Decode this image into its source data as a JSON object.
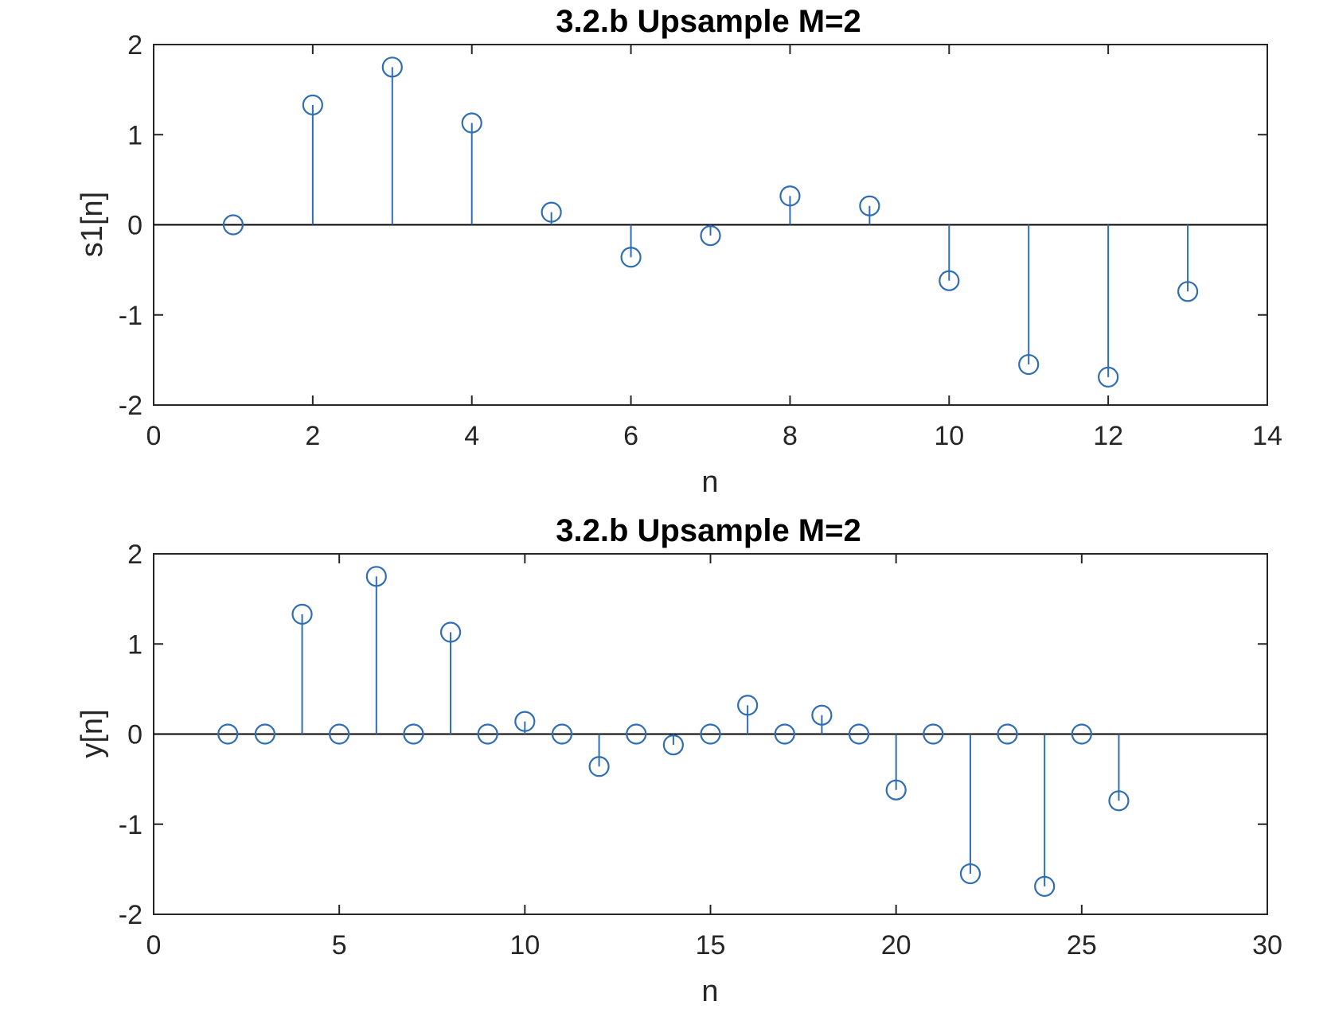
{
  "colors": {
    "stem": "#2f6db5",
    "axes": "#262626",
    "zero_line": "#000000",
    "background": "#ffffff"
  },
  "chart_data": [
    {
      "type": "stem",
      "title": "3.2.b Upsample M=2",
      "xlabel": "n",
      "ylabel": "s1[n]",
      "xlim": [
        0,
        14
      ],
      "ylim": [
        -2,
        2
      ],
      "xticks": [
        0,
        2,
        4,
        6,
        8,
        10,
        12,
        14
      ],
      "yticks": [
        -2,
        -1,
        0,
        1,
        2
      ],
      "xtick_labels": [
        "0",
        "2",
        "4",
        "6",
        "8",
        "10",
        "12",
        "14"
      ],
      "ytick_labels": [
        "-2",
        "-1",
        "0",
        "1",
        "2"
      ],
      "grid": false,
      "x": [
        1,
        2,
        3,
        4,
        5,
        6,
        7,
        8,
        9,
        10,
        11,
        12,
        13
      ],
      "values": [
        0,
        1.33,
        1.75,
        1.13,
        0.14,
        -0.36,
        -0.12,
        0.32,
        0.21,
        -0.62,
        -1.55,
        -1.69,
        -0.74
      ]
    },
    {
      "type": "stem",
      "title": "3.2.b Upsample M=2",
      "xlabel": "n",
      "ylabel": "y[n]",
      "xlim": [
        0,
        30
      ],
      "ylim": [
        -2,
        2
      ],
      "xticks": [
        0,
        5,
        10,
        15,
        20,
        25,
        30
      ],
      "yticks": [
        -2,
        -1,
        0,
        1,
        2
      ],
      "xtick_labels": [
        "0",
        "5",
        "10",
        "15",
        "20",
        "25",
        "30"
      ],
      "ytick_labels": [
        "-2",
        "-1",
        "0",
        "1",
        "2"
      ],
      "grid": false,
      "x": [
        2,
        3,
        4,
        5,
        6,
        7,
        8,
        9,
        10,
        11,
        12,
        13,
        14,
        15,
        16,
        17,
        18,
        19,
        20,
        21,
        22,
        23,
        24,
        25,
        26
      ],
      "values": [
        0,
        0,
        1.33,
        0,
        1.75,
        0,
        1.13,
        0,
        0.14,
        0,
        -0.36,
        0,
        -0.12,
        0,
        0.32,
        0,
        0.21,
        0,
        -0.62,
        0,
        -1.55,
        0,
        -1.69,
        0,
        -0.74
      ]
    }
  ]
}
